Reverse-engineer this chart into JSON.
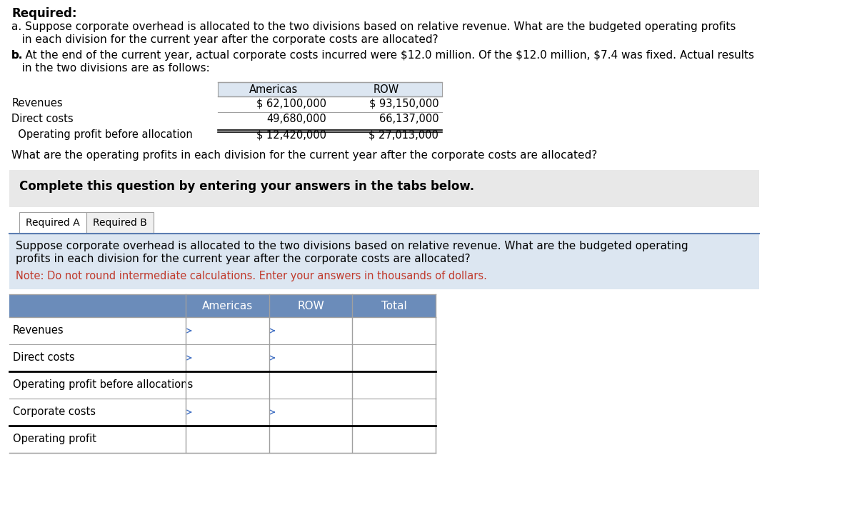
{
  "title_required": "Required:",
  "text_a": "a. Suppose corporate overhead is allocated to the two divisions based on relative revenue. What are the budgeted operating profits\n   in each division for the current year after the corporate costs are allocated?",
  "text_b": "b. At the end of the current year, actual corporate costs incurred were $12.0 million. Of the $12.0 million, $7.4 was fixed. Actual results\n   in the two divisions are as follows:",
  "top_table_headers": [
    "Americas",
    "ROW"
  ],
  "top_table_rows": [
    [
      "Revenues",
      "$ 62,100,000",
      "$ 93,150,000"
    ],
    [
      "Direct costs",
      "49,680,000",
      "66,137,000"
    ],
    [
      "  Operating profit before allocation",
      "$ 12,420,000",
      "$ 27,013,000"
    ]
  ],
  "question_text": "What are the operating profits in each division for the current year after the corporate costs are allocated?",
  "complete_text": "Complete this question by entering your answers in the tabs below.",
  "tab1": "Required A",
  "tab2": "Required B",
  "instruction_text": "Suppose corporate overhead is allocated to the two divisions based on relative revenue. What are the budgeted operating\nprofits in each division for the current year after the corporate costs are allocated?",
  "note_text": "Note: Do not round intermediate calculations. Enter your answers in thousands of dollars.",
  "bottom_table_headers": [
    "",
    "Americas",
    "ROW",
    "Total"
  ],
  "bottom_table_rows": [
    "Revenues",
    "Direct costs",
    "Operating profit before allocations",
    "Corporate costs",
    "Operating profit"
  ],
  "bg_color_main": "#ffffff",
  "bg_color_gray": "#e8e8e8",
  "bg_color_blue_light": "#dce6f1",
  "bg_color_blue_header": "#6b8cba",
  "border_color": "#a0a0a0",
  "text_color_black": "#000000",
  "text_color_red": "#c0392b",
  "text_color_blue_header": "#1f3864"
}
